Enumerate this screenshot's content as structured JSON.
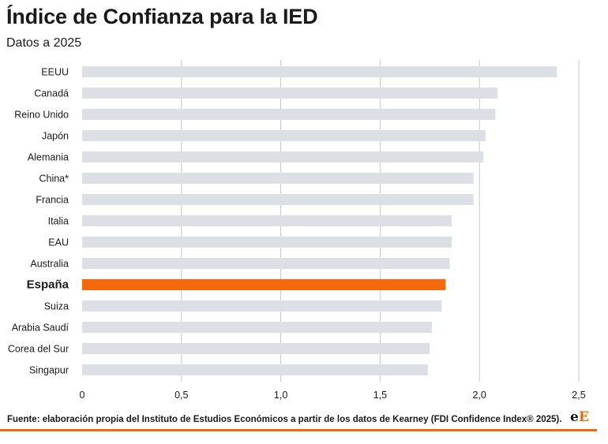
{
  "header": {
    "title": "Índice de Confianza para la IED",
    "subtitle": "Datos a 2025"
  },
  "footer": {
    "source": "Fuente: elaboración propia del Instituto de Estudios Económicos a partir de los datos de Kearney (FDI Confidence Index® 2025).",
    "logo_part1": "e",
    "logo_part2": "E"
  },
  "colors": {
    "bar_default": "#dcdfe3",
    "bar_highlight": "#f26a0d",
    "grid": "#c8c8c8",
    "accent_line": "#f26a0d"
  },
  "chart_data": {
    "type": "bar",
    "orientation": "horizontal",
    "title": "Índice de Confianza para la IED",
    "subtitle": "Datos a 2025",
    "categories": [
      "EEUU",
      "Canadá",
      "Reino Unido",
      "Japón",
      "Alemania",
      "China*",
      "Francia",
      "Italia",
      "EAU",
      "Australia",
      "España",
      "Suiza",
      "Arabia Saudí",
      "Corea del Sur",
      "Singapur"
    ],
    "values": [
      2.39,
      2.09,
      2.08,
      2.03,
      2.02,
      1.97,
      1.97,
      1.86,
      1.86,
      1.85,
      1.83,
      1.81,
      1.76,
      1.75,
      1.74
    ],
    "highlight": "España",
    "xlim": [
      0,
      2.5
    ],
    "xticks": [
      0,
      0.5,
      1.0,
      1.5,
      2.0,
      2.5
    ],
    "xtick_labels": [
      "0",
      "0,5",
      "1,0",
      "1,5",
      "2,0",
      "2,5"
    ],
    "grid": "vertical",
    "legend": "none",
    "xlabel": "",
    "ylabel": ""
  }
}
